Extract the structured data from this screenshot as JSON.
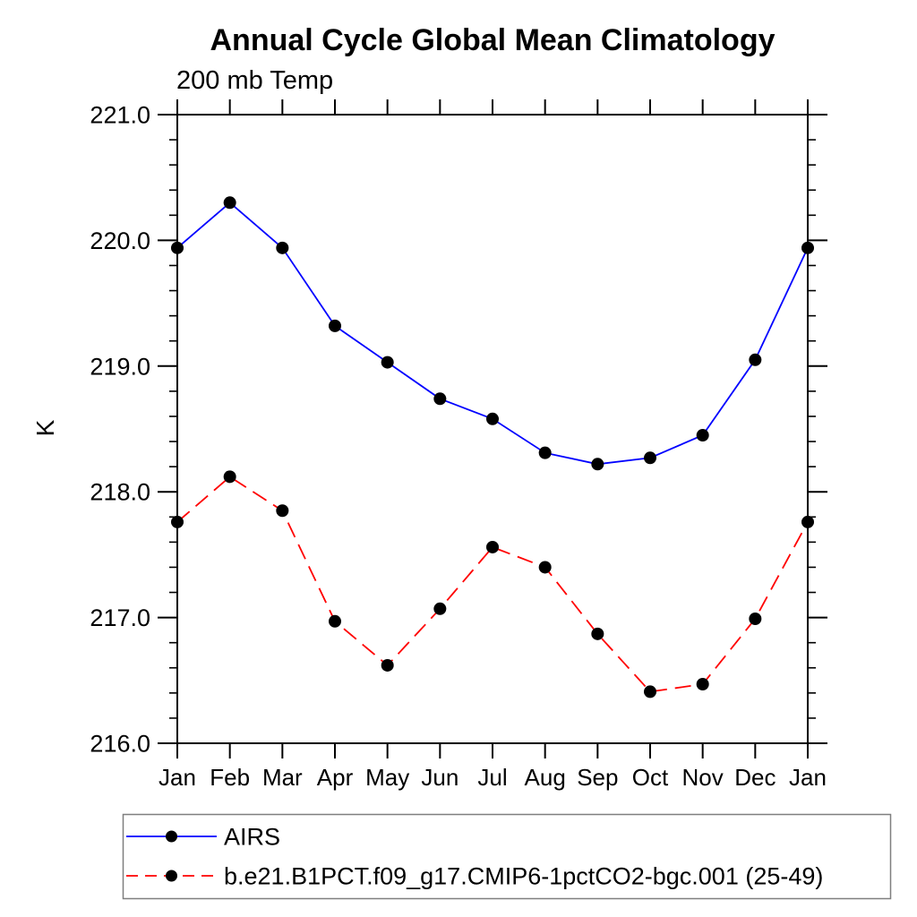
{
  "chart_data": {
    "type": "line",
    "title": "Annual Cycle Global Mean Climatology",
    "subtitle": "200 mb Temp",
    "ylabel": "K",
    "categories": [
      "Jan",
      "Feb",
      "Mar",
      "Apr",
      "May",
      "Jun",
      "Jul",
      "Aug",
      "Sep",
      "Oct",
      "Nov",
      "Dec",
      "Jan"
    ],
    "ylim": [
      216.0,
      221.0
    ],
    "ytick_interval": 1.0,
    "yminor_interval": 0.2,
    "ytick_labels": [
      "216.0",
      "217.0",
      "218.0",
      "219.0",
      "220.0",
      "221.0"
    ],
    "grid": false,
    "legend_position": "bottom-left-box",
    "axis_color": "#000000",
    "legend_border_color": "#7f7f7f",
    "series": [
      {
        "name": "AIRS",
        "color": "#0000ff",
        "line_style": "solid",
        "marker": "filled-circle",
        "marker_color": "#000000",
        "values": [
          219.94,
          220.3,
          219.94,
          219.32,
          219.03,
          218.74,
          218.58,
          218.31,
          218.22,
          218.27,
          218.45,
          219.05,
          219.94
        ]
      },
      {
        "name": "b.e21.B1PCT.f09_g17.CMIP6-1pctCO2-bgc.001 (25-49)",
        "color": "#ff0000",
        "line_style": "dashed",
        "marker": "filled-circle",
        "marker_color": "#000000",
        "values": [
          217.76,
          218.12,
          217.85,
          216.97,
          216.62,
          217.07,
          217.56,
          217.4,
          216.87,
          216.41,
          216.47,
          216.99,
          217.76
        ]
      }
    ]
  }
}
